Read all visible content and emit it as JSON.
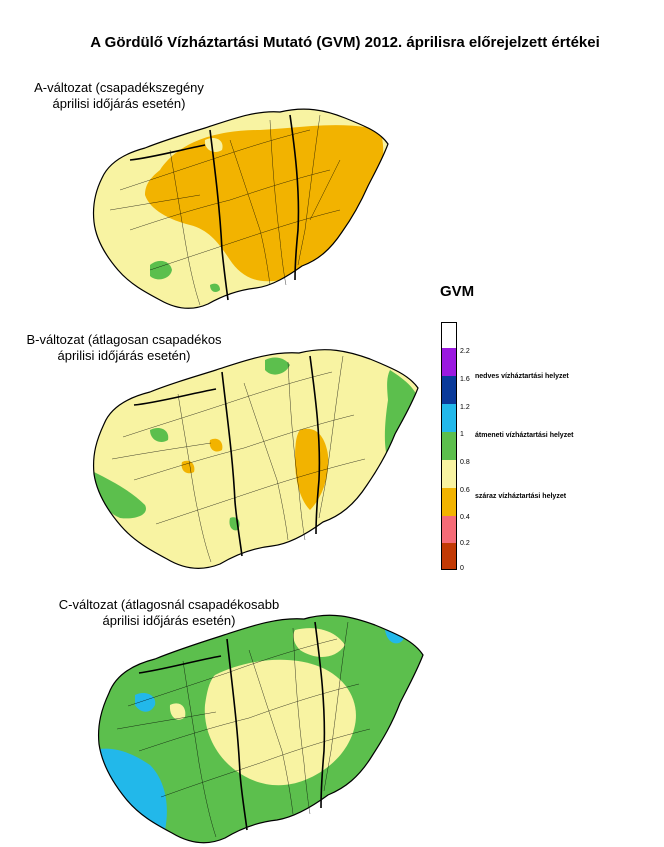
{
  "title": "A Gördülő Vízháztartási Mutató (GVM) 2012. áprilisra előrejelzett értékei",
  "variants": [
    {
      "line1": "A-változat (csapadékszegény",
      "line2": "áprilisi időjárás esetén)"
    },
    {
      "line1": "B-változat (átlagosan csapadékos",
      "line2": "áprilisi időjárás esetén)"
    },
    {
      "line1": "C-változat (átlagosnál csapadékosabb",
      "line2": "áprilisi időjárás esetén)"
    }
  ],
  "legend": {
    "title": "GVM",
    "ticks": [
      "2.2",
      "1.6",
      "1.2",
      "1",
      "0.8",
      "0.6",
      "0.4",
      "0.2",
      "0"
    ],
    "descriptions": [
      "nedves vízháztartási helyzet",
      "átmeneti vízháztartási helyzet",
      "száraz vízháztartási helyzet"
    ],
    "colors": {
      "above_2_2": "#ffffff",
      "1_6_to_2_2": "#9b19e0",
      "1_2_to_1_6": "#0a3a9a",
      "1_to_1_2": "#22b8ea",
      "0_8_to_1": "#5cbf4d",
      "0_6_to_0_8": "#f8f3a2",
      "0_4_to_0_6": "#f2b300",
      "0_2_to_0_4": "#f56b77",
      "0_to_0_2": "#c23a05"
    }
  }
}
